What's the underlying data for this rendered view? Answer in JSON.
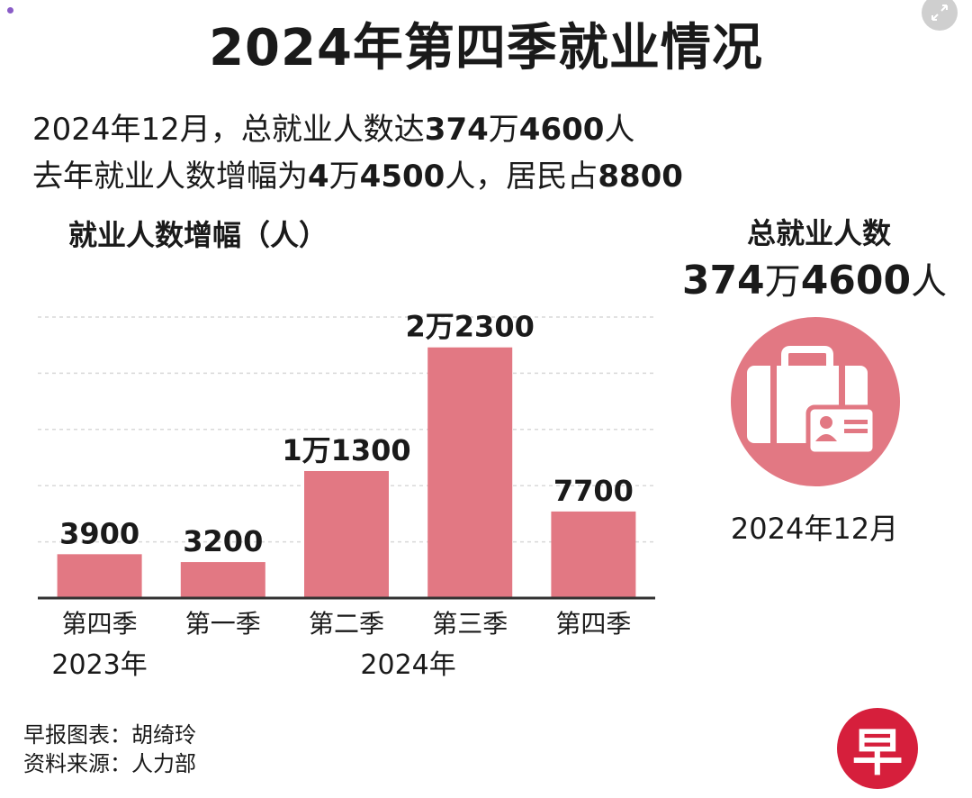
{
  "title": "2024年第四季就业情况",
  "summary": {
    "line1": {
      "prefix": "2024年12月，总就业人数达",
      "bold1": "374",
      "mid": "万",
      "bold2": "4600",
      "suffix": "人"
    },
    "line2": {
      "prefix": "去年就业人数增幅为",
      "bold1": "4",
      "mid": "万",
      "bold2": "4500",
      "mid2": "人，居民占",
      "bold3": "8800"
    }
  },
  "chart_data": {
    "type": "bar",
    "title": "就业人数增幅（人）",
    "categories": [
      "第四季",
      "第一季",
      "第二季",
      "第三季",
      "第四季"
    ],
    "values": [
      3900,
      3200,
      11300,
      22300,
      7700
    ],
    "data_labels": [
      "3900",
      "3200",
      "1万1300",
      "2万2300",
      "7700"
    ],
    "groups": [
      {
        "label": "2023年",
        "categories": [
          0
        ]
      },
      {
        "label": "2024年",
        "categories": [
          1,
          2,
          3,
          4
        ]
      }
    ],
    "ylim": [
      0,
      25000
    ],
    "grid": true,
    "colors": {
      "bar": "#e27883",
      "grid": "#d9d9d9",
      "axis": "#333333"
    }
  },
  "total": {
    "title": "总就业人数",
    "value_part1": "374",
    "value_unit1": "万",
    "value_part2": "4600",
    "value_unit2": "人",
    "date": "2024年12月",
    "icon": "briefcase-id-card-icon",
    "color": "#e27883"
  },
  "credits": {
    "line1": "早报图表：胡绮玲",
    "line2": "资料来源：人力部"
  },
  "logo": {
    "text": "早",
    "color": "#d61f3c"
  }
}
